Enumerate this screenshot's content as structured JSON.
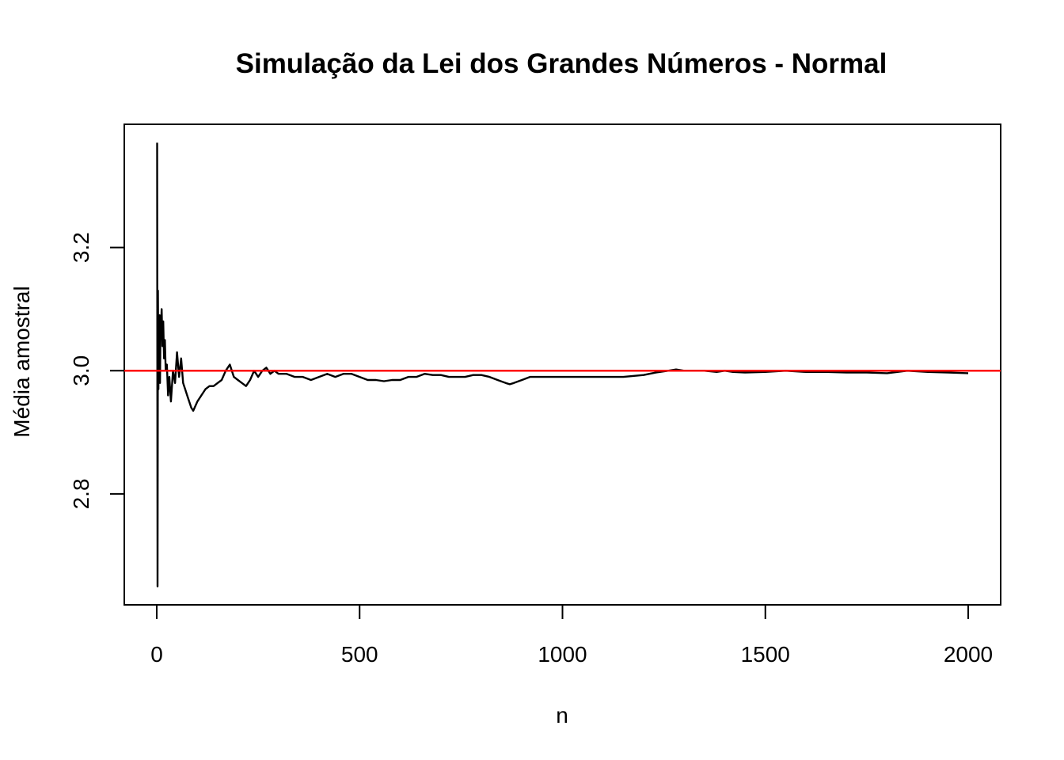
{
  "chart_data": {
    "type": "line",
    "title": "Simulação da Lei dos Grandes Números - Normal",
    "xlabel": "n",
    "ylabel": "Média amostral",
    "xlim": [
      -80,
      2080
    ],
    "ylim": [
      2.62,
      3.4
    ],
    "xticks": [
      0,
      500,
      1000,
      1500,
      2000
    ],
    "yticks": [
      2.8,
      3.0,
      3.2
    ],
    "xtick_labels": [
      "0",
      "500",
      "1000",
      "1500",
      "2000"
    ],
    "ytick_labels": [
      "2.8",
      "3.0",
      "3.2"
    ],
    "grid": false,
    "legend": "none",
    "reference_line": {
      "y": 3.0,
      "color": "#ff0000"
    },
    "line_color": "#000000",
    "series": [
      {
        "x": [
          1,
          2,
          3,
          4,
          5,
          6,
          7,
          8,
          9,
          10,
          12,
          14,
          16,
          18,
          20,
          22,
          25,
          28,
          31,
          35,
          40,
          45,
          50,
          55,
          60,
          65,
          70,
          75,
          80,
          85,
          90,
          100,
          110,
          120,
          130,
          140,
          150,
          160,
          170,
          180,
          190,
          200,
          210,
          220,
          230,
          240,
          250,
          260,
          270,
          280,
          290,
          300,
          320,
          340,
          360,
          380,
          400,
          420,
          440,
          460,
          480,
          500,
          520,
          540,
          560,
          580,
          600,
          620,
          640,
          660,
          680,
          700,
          720,
          740,
          760,
          780,
          800,
          820,
          840,
          860,
          870,
          880,
          900,
          920,
          940,
          960,
          980,
          1000,
          1050,
          1100,
          1150,
          1200,
          1230,
          1260,
          1280,
          1300,
          1350,
          1380,
          1400,
          1420,
          1450,
          1500,
          1550,
          1600,
          1650,
          1700,
          1750,
          1800,
          1850,
          1900,
          1950,
          2000
        ],
        "y": [
          3.37,
          2.65,
          3.13,
          2.97,
          3.08,
          3.02,
          3.09,
          2.98,
          3.05,
          3.06,
          3.1,
          3.04,
          3.08,
          3.02,
          3.05,
          3.0,
          3.01,
          2.96,
          2.99,
          2.95,
          3.0,
          2.98,
          3.03,
          2.99,
          3.02,
          2.98,
          2.97,
          2.96,
          2.95,
          2.94,
          2.935,
          2.95,
          2.96,
          2.97,
          2.975,
          2.975,
          2.98,
          2.985,
          3.0,
          3.01,
          2.99,
          2.985,
          2.98,
          2.975,
          2.985,
          3.0,
          2.99,
          3.0,
          3.005,
          2.995,
          3.0,
          2.995,
          2.995,
          2.99,
          2.99,
          2.985,
          2.99,
          2.995,
          2.99,
          2.995,
          2.995,
          2.99,
          2.985,
          2.985,
          2.983,
          2.985,
          2.985,
          2.99,
          2.99,
          2.995,
          2.993,
          2.993,
          2.99,
          2.99,
          2.99,
          2.993,
          2.993,
          2.99,
          2.985,
          2.98,
          2.978,
          2.98,
          2.985,
          2.99,
          2.99,
          2.99,
          2.99,
          2.99,
          2.99,
          2.99,
          2.99,
          2.993,
          2.997,
          3.0,
          3.002,
          3.0,
          3.0,
          2.998,
          3.0,
          2.998,
          2.997,
          2.998,
          3.0,
          2.998,
          2.998,
          2.997,
          2.997,
          2.996,
          3.0,
          2.998,
          2.997,
          2.996
        ]
      }
    ]
  }
}
